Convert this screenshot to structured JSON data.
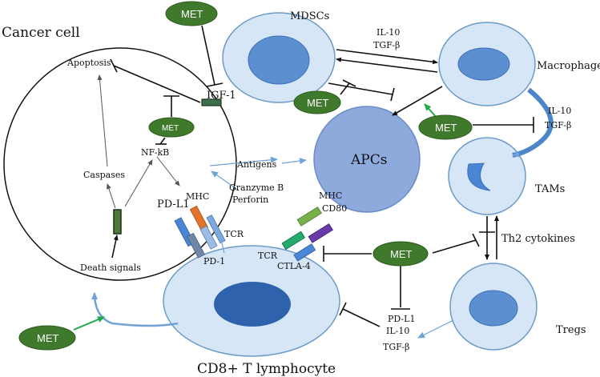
{
  "colors": {
    "met_fill": "#3f7a2c",
    "cell_fill": "#d6e6f6",
    "cell_stroke": "#6b9bc8",
    "nucleus_fill": "#5b8fd0",
    "cd8_nucleus": "#2e62ad",
    "apc_fill": "#8ea9dc",
    "arrow_blue": "#6fa2d8",
    "arrow_green": "#1ea84a"
  },
  "labels": {
    "cancer_cell": "Cancer cell",
    "mdscs": "MDSCs",
    "macrophage": "Macrophage",
    "apcs": "APCs",
    "tams": "TAMs",
    "tregs": "Tregs",
    "cd8": "CD8+ T lymphocyte",
    "apoptosis": "Apoptosis",
    "igf1": "IGF-1",
    "nfkb": "NF-kB",
    "caspases": "Caspases",
    "pdl1_cancer": "PD-L1",
    "mhc_cancer": "MHC",
    "antigens": "Antigens",
    "granzyme": "Granzyme B",
    "perforin": "Perforin",
    "tcr_left": "TCR",
    "pd1": "PD-1",
    "mhc_apc": "MHC",
    "cd80": "CD80",
    "tcr_right": "TCR",
    "ctla4": "CTLA-4",
    "death_signals": "Death signals",
    "il10_top": "IL-10",
    "tgfb_top": "TGF-β",
    "il10_right": "IL-10",
    "tgfb_right": "TGF-β",
    "th2": "Th2 cytokines",
    "pdl1_bottom": "PD-L1",
    "il10_bottom": "IL-10",
    "tgfb_bottom": "TGF-β"
  },
  "met_badges": {
    "top": "MET",
    "mid_left": "MET",
    "cancer_inner": "MET",
    "right": "MET",
    "center": "MET",
    "bottom_left": "MET"
  }
}
